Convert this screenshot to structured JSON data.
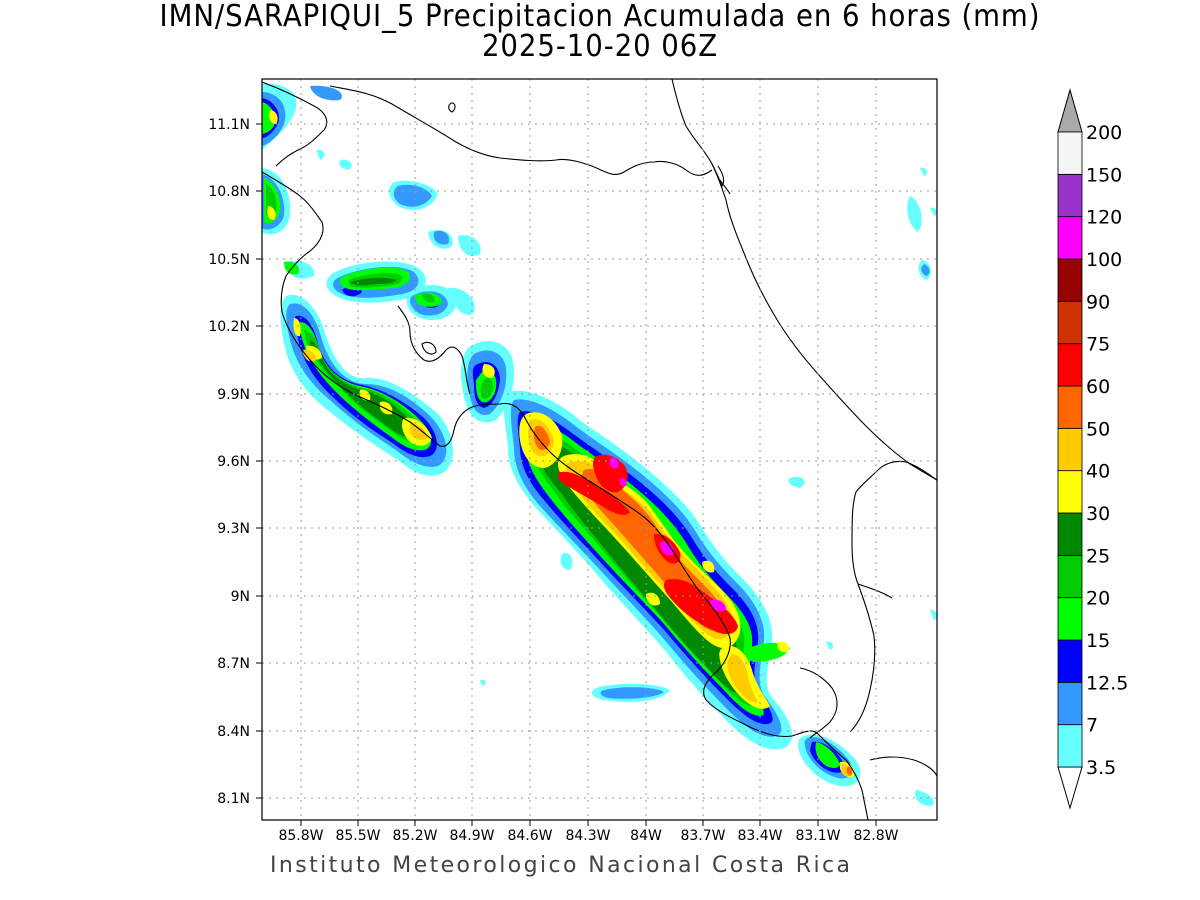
{
  "title": {
    "line1": "IMN/SARAPIQUI_5 Precipitacion Acumulada en 6 horas (mm)",
    "line2": "2025-10-20 06Z"
  },
  "footer": "Instituto Meteorologico Nacional Costa Rica",
  "map": {
    "lon_range": [
      -86.0,
      -82.6
    ],
    "lat_range": [
      8.0,
      11.3
    ],
    "lon_ticks": [
      "85.8W",
      "85.5W",
      "85.2W",
      "84.9W",
      "84.6W",
      "84.3W",
      "84W",
      "83.7W",
      "83.4W",
      "83.1W",
      "82.8W"
    ],
    "lat_ticks": [
      "11.1N",
      "10.8N",
      "10.5N",
      "10.2N",
      "9.9N",
      "9.6N",
      "9.3N",
      "9N",
      "8.7N",
      "8.4N",
      "8.1N"
    ],
    "grid": "dotted",
    "region": "Costa Rica"
  },
  "legend": {
    "title": "",
    "levels": [
      "3.5",
      "7",
      "12.5",
      "15",
      "20",
      "25",
      "30",
      "40",
      "50",
      "60",
      "75",
      "90",
      "100",
      "120",
      "150",
      "200"
    ],
    "colors": [
      "#66ffff",
      "#3399ff",
      "#0000ff",
      "#00ff00",
      "#00cc00",
      "#008800",
      "#ffff00",
      "#ffcc00",
      "#ff6600",
      "#ff0000",
      "#cc3300",
      "#990000",
      "#ff00ff",
      "#9933cc",
      "#f5f5f5",
      "#aaaaaa"
    ]
  }
}
